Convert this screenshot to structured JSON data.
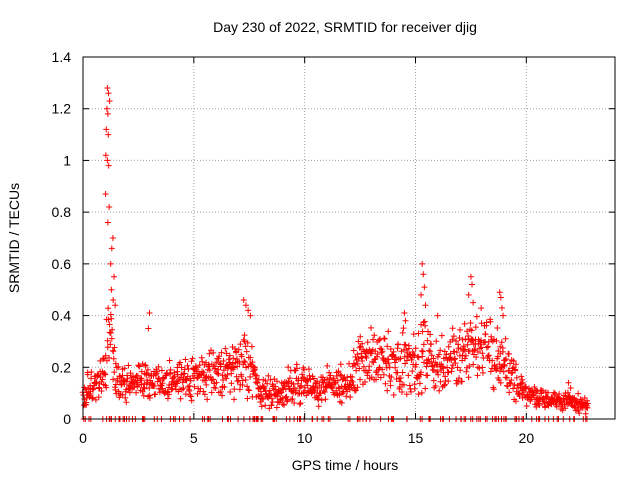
{
  "chart_data": {
    "type": "scatter",
    "title": "Day 230 of 2022, SRMTID for receiver djig",
    "xlabel": "GPS time / hours",
    "ylabel": "SRMTID / TECUs",
    "xlim": [
      0,
      24
    ],
    "ylim": [
      0,
      1.4
    ],
    "x_ticks": [
      "0",
      "5",
      "10",
      "15",
      "20"
    ],
    "x_tick_values": [
      0,
      5,
      10,
      15,
      20
    ],
    "y_ticks": [
      "0",
      "0.2",
      "0.4",
      "0.6",
      "0.8",
      "1",
      "1.2",
      "1.4"
    ],
    "y_tick_values": [
      0,
      0.2,
      0.4,
      0.6,
      0.8,
      1.0,
      1.2,
      1.4
    ],
    "grid": true,
    "marker": "+",
    "color": "#ff0000",
    "envelope": {
      "x": [
        0,
        0.5,
        0.9,
        1.05,
        1.15,
        1.3,
        1.5,
        2.0,
        3.0,
        4.0,
        5.0,
        6.0,
        7.0,
        7.3,
        7.6,
        8.0,
        9.0,
        9.5,
        10.0,
        11.0,
        12.0,
        12.5,
        13.0,
        13.5,
        14.0,
        14.5,
        15.0,
        15.3,
        15.6,
        16.0,
        16.5,
        17.0,
        17.5,
        18.0,
        18.5,
        19.0,
        19.5,
        20.0,
        21.0,
        21.5,
        22.0,
        22.8
      ],
      "base": [
        0.1,
        0.12,
        0.15,
        0.3,
        0.35,
        0.3,
        0.15,
        0.14,
        0.15,
        0.15,
        0.16,
        0.18,
        0.18,
        0.22,
        0.2,
        0.1,
        0.1,
        0.14,
        0.12,
        0.13,
        0.14,
        0.22,
        0.24,
        0.25,
        0.2,
        0.22,
        0.2,
        0.25,
        0.22,
        0.2,
        0.22,
        0.25,
        0.3,
        0.28,
        0.25,
        0.22,
        0.15,
        0.1,
        0.07,
        0.07,
        0.07,
        0.05
      ],
      "spread": [
        0.06,
        0.06,
        0.08,
        0.15,
        0.2,
        0.1,
        0.07,
        0.06,
        0.07,
        0.07,
        0.08,
        0.08,
        0.1,
        0.12,
        0.1,
        0.05,
        0.06,
        0.08,
        0.06,
        0.06,
        0.07,
        0.1,
        0.1,
        0.1,
        0.1,
        0.12,
        0.12,
        0.15,
        0.12,
        0.1,
        0.1,
        0.12,
        0.12,
        0.12,
        0.12,
        0.1,
        0.07,
        0.04,
        0.03,
        0.03,
        0.04,
        0.03
      ]
    },
    "peaks": [
      {
        "x": 1.1,
        "y": 1.28
      },
      {
        "x": 1.15,
        "y": 1.26
      },
      {
        "x": 1.2,
        "y": 1.23
      },
      {
        "x": 1.08,
        "y": 1.2
      },
      {
        "x": 1.12,
        "y": 1.18
      },
      {
        "x": 1.05,
        "y": 1.12
      },
      {
        "x": 1.14,
        "y": 1.1
      },
      {
        "x": 1.03,
        "y": 1.02
      },
      {
        "x": 1.1,
        "y": 1.0
      },
      {
        "x": 1.16,
        "y": 0.98
      },
      {
        "x": 1.02,
        "y": 0.87
      },
      {
        "x": 1.18,
        "y": 0.82
      },
      {
        "x": 1.12,
        "y": 0.76
      },
      {
        "x": 1.35,
        "y": 0.7
      },
      {
        "x": 1.3,
        "y": 0.66
      },
      {
        "x": 1.25,
        "y": 0.6
      },
      {
        "x": 1.4,
        "y": 0.55
      },
      {
        "x": 1.28,
        "y": 0.5
      },
      {
        "x": 1.36,
        "y": 0.46
      },
      {
        "x": 1.45,
        "y": 0.44
      },
      {
        "x": 3.0,
        "y": 0.41
      },
      {
        "x": 2.95,
        "y": 0.35
      },
      {
        "x": 7.25,
        "y": 0.46
      },
      {
        "x": 7.35,
        "y": 0.44
      },
      {
        "x": 7.45,
        "y": 0.42
      },
      {
        "x": 7.55,
        "y": 0.4
      },
      {
        "x": 14.5,
        "y": 0.41
      },
      {
        "x": 14.55,
        "y": 0.38
      },
      {
        "x": 15.3,
        "y": 0.6
      },
      {
        "x": 15.35,
        "y": 0.56
      },
      {
        "x": 15.4,
        "y": 0.51
      },
      {
        "x": 15.25,
        "y": 0.48
      },
      {
        "x": 15.45,
        "y": 0.44
      },
      {
        "x": 16.0,
        "y": 0.4
      },
      {
        "x": 17.5,
        "y": 0.55
      },
      {
        "x": 17.55,
        "y": 0.52
      },
      {
        "x": 17.4,
        "y": 0.48
      },
      {
        "x": 17.6,
        "y": 0.45
      },
      {
        "x": 18.8,
        "y": 0.49
      },
      {
        "x": 18.85,
        "y": 0.47
      },
      {
        "x": 18.9,
        "y": 0.43
      },
      {
        "x": 18.95,
        "y": 0.4
      },
      {
        "x": 21.9,
        "y": 0.14
      },
      {
        "x": 22.0,
        "y": 0.12
      }
    ],
    "zero_band": {
      "x_start": 0,
      "x_end": 22.8,
      "y": 0
    }
  }
}
